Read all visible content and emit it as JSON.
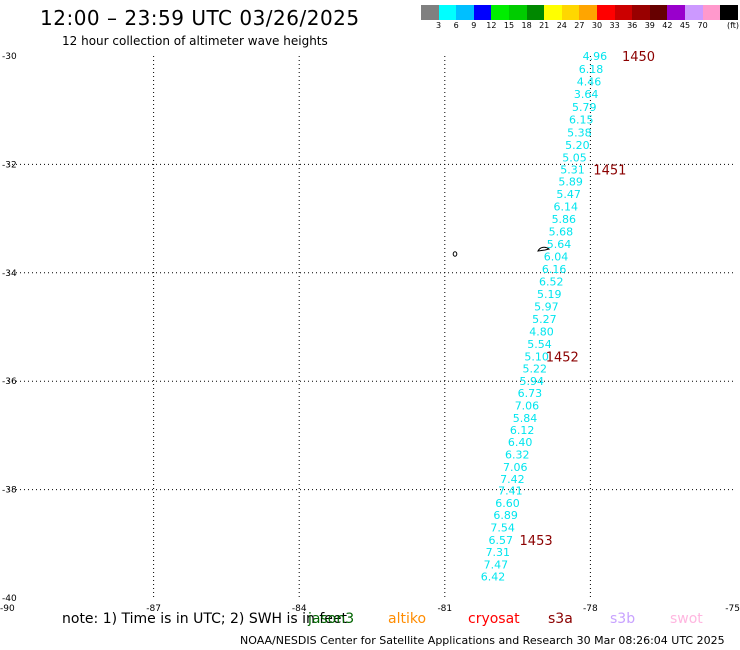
{
  "title": "12:00 – 23:59 UTC 03/26/2025",
  "subtitle": "12 hour collection of altimeter wave heights",
  "legend": {
    "colors": [
      "#808080",
      "#00ffff",
      "#00bfff",
      "#0000ff",
      "#00ee00",
      "#00cc00",
      "#008800",
      "#ffff00",
      "#ffd700",
      "#ffa500",
      "#ff0000",
      "#cc0000",
      "#990000",
      "#660000",
      "#9900cc",
      "#cc99ff",
      "#ff99cc",
      "#000000"
    ],
    "labels": [
      "3",
      "6",
      "9",
      "12",
      "15",
      "18",
      "21",
      "24",
      "27",
      "30",
      "33",
      "36",
      "39",
      "42",
      "45",
      "70",
      "(ft)"
    ]
  },
  "note": "note:  1) Time is in UTC; 2) SWH is in feet",
  "satellites": [
    {
      "name": "jason3",
      "color": "#006400"
    },
    {
      "name": "altiko",
      "color": "#ff8c00"
    },
    {
      "name": "cryosat",
      "color": "#ff0000"
    },
    {
      "name": "s3a",
      "color": "#8b0000"
    },
    {
      "name": "s3b",
      "color": "#c8a2ff"
    },
    {
      "name": "swot",
      "color": "#ffb6e0"
    }
  ],
  "footer": "NOAA/NESDIS Center for Satellite Applications and Research    30 Mar 08:26:04 UTC 2025",
  "chart_data": {
    "type": "scatter",
    "xlim": [
      -90,
      -75
    ],
    "ylim": [
      -40,
      -30
    ],
    "xticks": [
      -90,
      -87,
      -84,
      -81,
      -78,
      -75
    ],
    "yticks": [
      -30,
      -32,
      -34,
      -36,
      -38,
      -40
    ],
    "grid": true,
    "point_color": "#00e5ee",
    "time_color": "#8b0000",
    "points": [
      {
        "x": -78.16,
        "y": -30.0,
        "v": "4.96"
      },
      {
        "x": -78.24,
        "y": -30.24,
        "v": "6.18"
      },
      {
        "x": -78.28,
        "y": -30.47,
        "v": "4.46"
      },
      {
        "x": -78.34,
        "y": -30.7,
        "v": "3.64"
      },
      {
        "x": -78.38,
        "y": -30.94,
        "v": "5.79"
      },
      {
        "x": -78.44,
        "y": -31.17,
        "v": "6.15"
      },
      {
        "x": -78.48,
        "y": -31.41,
        "v": "5.38"
      },
      {
        "x": -78.52,
        "y": -31.64,
        "v": "5.20"
      },
      {
        "x": -78.58,
        "y": -31.87,
        "v": "5.05"
      },
      {
        "x": -78.62,
        "y": -32.09,
        "v": "5.31"
      },
      {
        "x": -78.66,
        "y": -32.32,
        "v": "5.89"
      },
      {
        "x": -78.7,
        "y": -32.55,
        "v": "5.47"
      },
      {
        "x": -78.76,
        "y": -32.78,
        "v": "6.14"
      },
      {
        "x": -78.8,
        "y": -33.01,
        "v": "5.86"
      },
      {
        "x": -78.86,
        "y": -33.24,
        "v": "5.68"
      },
      {
        "x": -78.9,
        "y": -33.47,
        "v": "5.64"
      },
      {
        "x": -78.96,
        "y": -33.7,
        "v": "6.04"
      },
      {
        "x": -79.0,
        "y": -33.93,
        "v": "6.16"
      },
      {
        "x": -79.06,
        "y": -34.16,
        "v": "6.52"
      },
      {
        "x": -79.1,
        "y": -34.39,
        "v": "5.19"
      },
      {
        "x": -79.16,
        "y": -34.62,
        "v": "5.97"
      },
      {
        "x": -79.2,
        "y": -34.85,
        "v": "5.27"
      },
      {
        "x": -79.26,
        "y": -35.08,
        "v": "4.80"
      },
      {
        "x": -79.3,
        "y": -35.31,
        "v": "5.54"
      },
      {
        "x": -79.36,
        "y": -35.54,
        "v": "5.10"
      },
      {
        "x": -79.4,
        "y": -35.77,
        "v": "5.22"
      },
      {
        "x": -79.46,
        "y": -36.0,
        "v": "5.94"
      },
      {
        "x": -79.5,
        "y": -36.22,
        "v": "6.73"
      },
      {
        "x": -79.56,
        "y": -36.45,
        "v": "7.06"
      },
      {
        "x": -79.6,
        "y": -36.68,
        "v": "5.84"
      },
      {
        "x": -79.66,
        "y": -36.9,
        "v": "6.12"
      },
      {
        "x": -79.7,
        "y": -37.12,
        "v": "6.40"
      },
      {
        "x": -79.76,
        "y": -37.35,
        "v": "6.32"
      },
      {
        "x": -79.8,
        "y": -37.58,
        "v": "7.06"
      },
      {
        "x": -79.86,
        "y": -37.8,
        "v": "7.42"
      },
      {
        "x": -79.9,
        "y": -38.02,
        "v": "7.41"
      },
      {
        "x": -79.96,
        "y": -38.25,
        "v": "6.60"
      },
      {
        "x": -80.0,
        "y": -38.47,
        "v": "6.89"
      },
      {
        "x": -80.06,
        "y": -38.7,
        "v": "7.54"
      },
      {
        "x": -80.1,
        "y": -38.93,
        "v": "6.57"
      },
      {
        "x": -80.16,
        "y": -39.15,
        "v": "7.31"
      },
      {
        "x": -80.2,
        "y": -39.38,
        "v": "7.47"
      },
      {
        "x": -80.26,
        "y": -39.6,
        "v": "6.42"
      }
    ],
    "time_labels": [
      {
        "x": -77.35,
        "y": -30.0,
        "t": "1450"
      },
      {
        "x": -77.94,
        "y": -32.09,
        "t": "1451"
      },
      {
        "x": -78.92,
        "y": -35.54,
        "t": "1452"
      },
      {
        "x": -79.46,
        "y": -38.93,
        "t": "1453"
      }
    ]
  }
}
